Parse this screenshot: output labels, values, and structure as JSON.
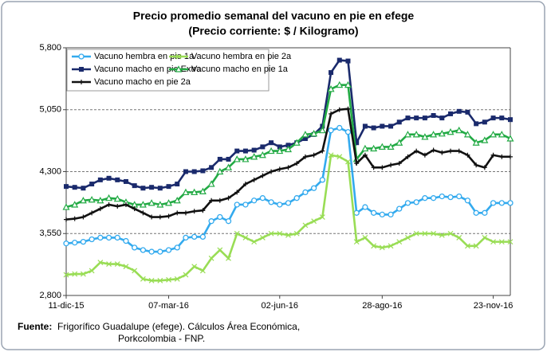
{
  "chart_data": {
    "type": "line",
    "title": "Precio promedio semanal del vacuno en pie en efege",
    "subtitle": "(Precio corriente: $ / Kilogramo)",
    "categories": [
      "11-dic-15",
      null,
      null,
      null,
      null,
      null,
      null,
      null,
      null,
      null,
      null,
      null,
      "07-mar-16",
      null,
      null,
      null,
      null,
      null,
      null,
      null,
      null,
      null,
      null,
      null,
      null,
      "02-jun-16",
      null,
      null,
      null,
      null,
      null,
      null,
      null,
      null,
      null,
      null,
      null,
      "28-ago-16",
      null,
      null,
      null,
      null,
      null,
      null,
      null,
      null,
      null,
      null,
      null,
      null,
      "23-nov-16",
      null,
      null
    ],
    "ylim": [
      2800,
      5800
    ],
    "yticks": [
      {
        "value": 2800,
        "label": "2,800"
      },
      {
        "value": 3550,
        "label": "3,550"
      },
      {
        "value": 4300,
        "label": "4,300"
      },
      {
        "value": 5050,
        "label": "5,050"
      },
      {
        "value": 5800,
        "label": "5,800"
      }
    ],
    "grid": true,
    "legend": "upper left",
    "series": [
      {
        "name": "Vacuno hembra en pie 1a",
        "color": "#33aaee",
        "marker": "circle",
        "values": [
          3430,
          3440,
          3450,
          3480,
          3500,
          3500,
          3500,
          3460,
          3380,
          3350,
          3330,
          3330,
          3350,
          3380,
          3500,
          3510,
          3510,
          3700,
          3750,
          3700,
          3900,
          3900,
          3950,
          3980,
          3930,
          3900,
          3920,
          3980,
          4050,
          4100,
          4200,
          4800,
          4830,
          4780,
          3800,
          3870,
          3800,
          3780,
          3780,
          3850,
          3920,
          3930,
          3980,
          3980,
          4000,
          3990,
          4000,
          3950,
          3800,
          3800,
          3920,
          3920,
          3920
        ]
      },
      {
        "name": "Vacuno hembra en pie 2a",
        "color": "#99dd55",
        "marker": "x",
        "values": [
          3050,
          3060,
          3060,
          3100,
          3200,
          3180,
          3180,
          3150,
          3100,
          3000,
          2980,
          2980,
          2990,
          3000,
          3050,
          3150,
          3100,
          3250,
          3350,
          3250,
          3550,
          3500,
          3450,
          3500,
          3550,
          3550,
          3530,
          3550,
          3650,
          3700,
          3750,
          4500,
          4480,
          4420,
          3450,
          3500,
          3400,
          3380,
          3400,
          3450,
          3500,
          3550,
          3550,
          3550,
          3530,
          3550,
          3500,
          3400,
          3400,
          3500,
          3450,
          3450,
          3450
        ]
      },
      {
        "name": "Vacuno macho en pie Extra",
        "color": "#1a2a6c",
        "marker": "square",
        "values": [
          4120,
          4110,
          4100,
          4150,
          4200,
          4220,
          4200,
          4180,
          4130,
          4100,
          4110,
          4100,
          4120,
          4150,
          4300,
          4300,
          4310,
          4350,
          4450,
          4450,
          4550,
          4550,
          4560,
          4600,
          4650,
          4600,
          4620,
          4650,
          4700,
          4750,
          4850,
          5500,
          5650,
          5640,
          4650,
          4850,
          4830,
          4850,
          4850,
          4900,
          4950,
          4950,
          4950,
          4980,
          4950,
          5000,
          5030,
          5020,
          4880,
          4900,
          4950,
          4950,
          4930
        ]
      },
      {
        "name": "Vacuno macho en pie 1a",
        "color": "#22aa44",
        "marker": "triangle",
        "values": [
          3870,
          3900,
          3950,
          3960,
          3950,
          3980,
          3970,
          3930,
          3900,
          3900,
          3920,
          3900,
          3920,
          3950,
          4050,
          4050,
          4060,
          4150,
          4300,
          4350,
          4450,
          4450,
          4480,
          4500,
          4550,
          4550,
          4570,
          4650,
          4750,
          4760,
          4800,
          5300,
          5350,
          5350,
          4450,
          4580,
          4580,
          4600,
          4600,
          4650,
          4750,
          4750,
          4720,
          4750,
          4760,
          4780,
          4800,
          4750,
          4650,
          4680,
          4750,
          4750,
          4700
        ]
      },
      {
        "name": "Vacuno macho en pie 2a",
        "color": "#111111",
        "marker": "plus",
        "values": [
          3720,
          3730,
          3750,
          3800,
          3850,
          3900,
          3880,
          3900,
          3850,
          3800,
          3750,
          3750,
          3760,
          3800,
          3800,
          3820,
          3830,
          3950,
          3950,
          3980,
          4050,
          4150,
          4200,
          4250,
          4300,
          4330,
          4350,
          4400,
          4480,
          4500,
          4550,
          5000,
          5050,
          5060,
          4400,
          4500,
          4350,
          4350,
          4380,
          4400,
          4480,
          4550,
          4500,
          4560,
          4530,
          4550,
          4550,
          4500,
          4380,
          4350,
          4500,
          4480,
          4480
        ]
      }
    ],
    "source_label": "Fuente:",
    "source_lines": [
      "Frigorífico Guadalupe (efege). Cálculos Área Económica,",
      "Porkcolombia  - FNP."
    ]
  }
}
